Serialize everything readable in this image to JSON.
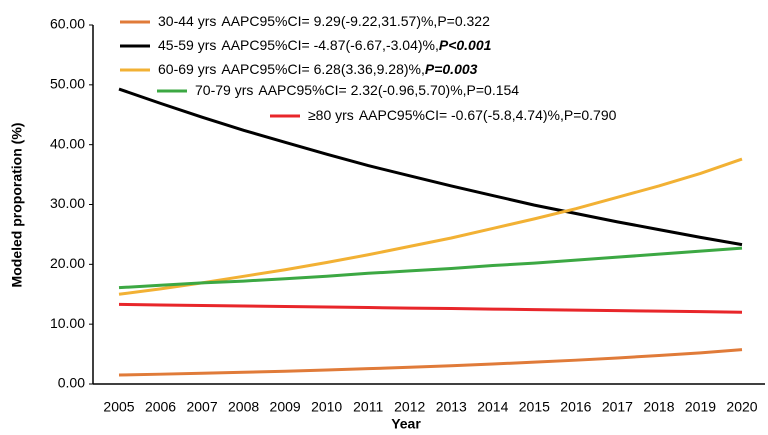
{
  "chart_data": {
    "type": "line",
    "x_label": "Year",
    "y_label": "Modeled proporation (%)",
    "categories": [
      "2005",
      "2006",
      "2007",
      "2008",
      "2009",
      "2010",
      "2011",
      "2012",
      "2013",
      "2014",
      "2015",
      "2016",
      "2017",
      "2018",
      "2019",
      "2020"
    ],
    "ylim": [
      0,
      60
    ],
    "yticks": [
      {
        "value": 0,
        "label": "0.00"
      },
      {
        "value": 10,
        "label": "10.00"
      },
      {
        "value": 20,
        "label": "20.00"
      },
      {
        "value": 30,
        "label": "30.00"
      },
      {
        "value": 40,
        "label": "40.00"
      },
      {
        "value": 50,
        "label": "50.00"
      },
      {
        "value": 60,
        "label": "60.00"
      }
    ],
    "series": [
      {
        "name": "30-44 yrs",
        "stats": "AAPC95%CI=  9.29(-9.22,31.57)%,",
        "p": "P=0.322",
        "p_bold": false,
        "color": "#e07b39",
        "values": [
          1.5,
          1.64,
          1.79,
          1.96,
          2.14,
          2.34,
          2.56,
          2.79,
          3.05,
          3.34,
          3.65,
          3.98,
          4.35,
          4.76,
          5.2,
          5.75
        ]
      },
      {
        "name": "45-59 yrs",
        "stats": "AAPC95%CI=  -4.87(-6.67,-3.04)%,",
        "p": "P<0.001",
        "p_bold": true,
        "color": "#000000",
        "values": [
          49.3,
          46.9,
          44.6,
          42.4,
          40.4,
          38.4,
          36.5,
          34.8,
          33.1,
          31.5,
          29.9,
          28.5,
          27.1,
          25.8,
          24.5,
          23.3
        ]
      },
      {
        "name": "60-69 yrs",
        "stats": "AAPC95%CI=  6.28(3.36,9.28)%,",
        "p": "P=0.003",
        "p_bold": true,
        "color": "#f2b134",
        "values": [
          15.0,
          15.9,
          16.9,
          18.0,
          19.1,
          20.3,
          21.6,
          23.0,
          24.4,
          26.0,
          27.6,
          29.3,
          31.2,
          33.1,
          35.2,
          37.6
        ]
      },
      {
        "name": "70-79 yrs",
        "stats": "AAPC95%CI=  2.32(-0.96,5.70)%,",
        "p": "P=0.154",
        "p_bold": false,
        "color": "#3ca843",
        "values": [
          16.1,
          16.5,
          16.9,
          17.2,
          17.6,
          18.0,
          18.5,
          18.9,
          19.3,
          19.8,
          20.2,
          20.7,
          21.2,
          21.7,
          22.2,
          22.7
        ]
      },
      {
        "name": "≥80 yrs",
        "stats": "AAPC95%CI=  -0.67(-5.8,4.74)%,",
        "p": "P=0.790",
        "p_bold": false,
        "color": "#e8262a",
        "values": [
          13.3,
          13.21,
          13.13,
          13.04,
          12.95,
          12.87,
          12.78,
          12.69,
          12.61,
          12.52,
          12.43,
          12.35,
          12.26,
          12.17,
          12.09,
          12.0
        ]
      }
    ]
  }
}
